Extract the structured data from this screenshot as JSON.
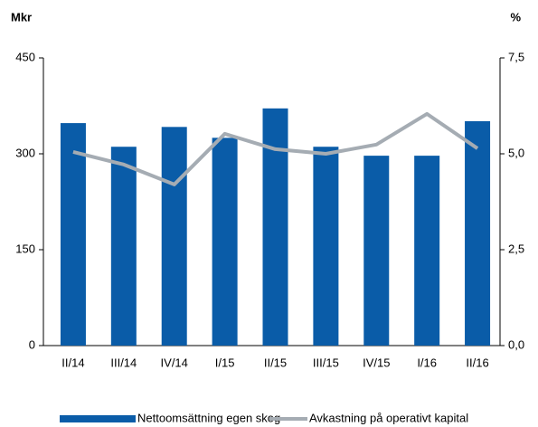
{
  "chart_data": {
    "type": "bar_line",
    "ylabel": "Mkr",
    "y2label": "%",
    "categories": [
      "II/14",
      "III/14",
      "IV/14",
      "I/15",
      "II/15",
      "III/15",
      "IV/15",
      "I/16",
      "II/16"
    ],
    "series": [
      {
        "name": "Nettoomsättning egen skog",
        "color": "#0a5ca8",
        "type": "bar",
        "values": [
          348,
          311,
          342,
          325,
          371,
          311,
          297,
          297,
          351
        ]
      },
      {
        "name": "Avkastning på operativt kapital",
        "color": "#a5acb3",
        "type": "line",
        "axis": "y2",
        "values": [
          5.05,
          4.72,
          4.2,
          5.52,
          5.12,
          5.0,
          5.24,
          6.04,
          5.14
        ]
      }
    ],
    "ylim": [
      0,
      450
    ],
    "yticks": [
      0,
      150,
      300,
      450
    ],
    "y2lim": [
      0,
      7.5
    ],
    "y2ticks": [
      {
        "value": 0,
        "label": "0,0"
      },
      {
        "value": 2.5,
        "label": "2,5"
      },
      {
        "value": 5,
        "label": "5,0"
      },
      {
        "value": 7.5,
        "label": "7,5"
      }
    ],
    "legend": "bottom"
  }
}
